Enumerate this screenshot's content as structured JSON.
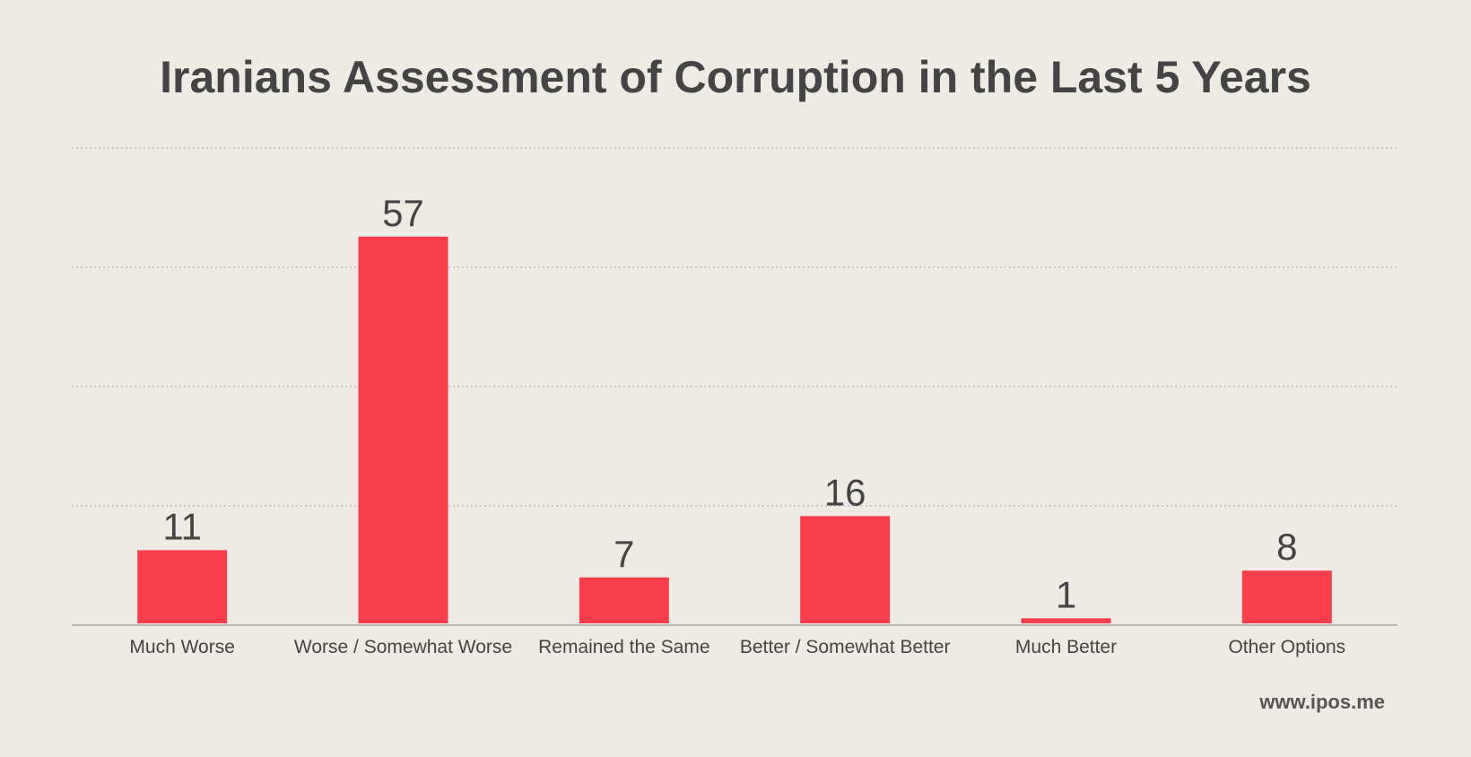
{
  "chart_data": {
    "type": "bar",
    "title": "Iranians Assessment of Corruption in the Last 5 Years",
    "categories": [
      "Much Worse",
      "Worse / Somewhat Worse",
      "Remained the Same",
      "Better / Somewhat Better",
      "Much Better",
      "Other Options"
    ],
    "values": [
      11,
      57,
      7,
      16,
      1,
      8
    ],
    "ylim": [
      0,
      70
    ],
    "grid": true,
    "xlabel": "",
    "ylabel": "",
    "colors": {
      "bar": "#f73e4a",
      "text": "#444444",
      "grid": "#aaaaaa",
      "background": "#eeebe5"
    }
  },
  "source": "www.ipos.me"
}
